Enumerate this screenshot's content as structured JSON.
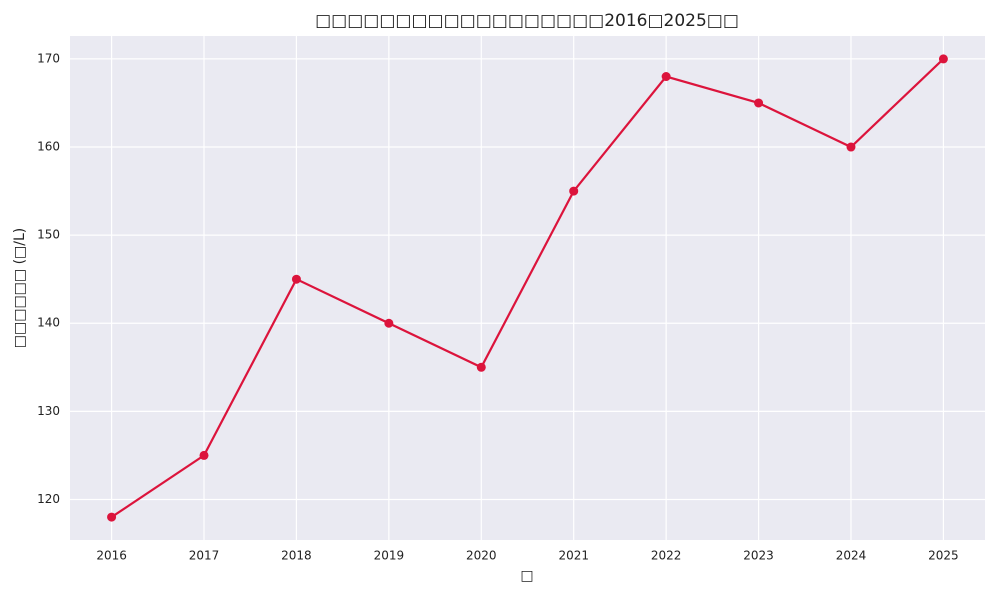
{
  "chart_data": {
    "type": "line",
    "title": "□□□□□□□□□□□□□□□□□□2016□2025□□",
    "xlabel": "□",
    "ylabel": "□□□□□□ (□/L)",
    "x": [
      2016,
      2017,
      2018,
      2019,
      2020,
      2021,
      2022,
      2023,
      2024,
      2025
    ],
    "series": [
      {
        "name": "□□",
        "color": "#dc143c",
        "values": [
          118,
          125,
          145,
          140,
          135,
          155,
          168,
          165,
          160,
          170
        ]
      }
    ],
    "xlim": [
      2015.55,
      2025.45
    ],
    "xticks": [
      2016,
      2017,
      2018,
      2019,
      2020,
      2021,
      2022,
      2023,
      2024,
      2025
    ],
    "ylim": [
      115.4,
      172.6
    ],
    "yticks": [
      120,
      130,
      140,
      150,
      160,
      170
    ],
    "grid": true
  }
}
